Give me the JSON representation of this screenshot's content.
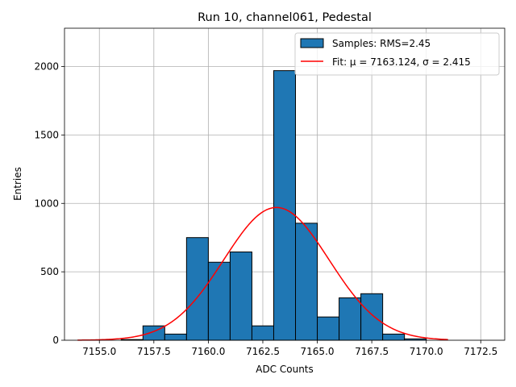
{
  "chart_data": {
    "type": "bar",
    "title": "Run 10, channel061, Pedestal",
    "xlabel": "ADC Counts",
    "ylabel": "Entries",
    "xlim": [
      7153.4,
      7173.6
    ],
    "ylim": [
      0,
      2280
    ],
    "x_ticks": [
      7155.0,
      7157.5,
      7160.0,
      7162.5,
      7165.0,
      7167.5,
      7170.0,
      7172.5
    ],
    "x_tick_labels": [
      "7155.0",
      "7157.5",
      "7160.0",
      "7162.5",
      "7165.0",
      "7167.5",
      "7170.0",
      "7172.5"
    ],
    "y_ticks": [
      0,
      500,
      1000,
      1500,
      2000
    ],
    "y_tick_labels": [
      "0",
      "500",
      "1000",
      "1500",
      "2000"
    ],
    "grid": true,
    "legend_position": "top-right",
    "histogram": {
      "name": "Samples: RMS=2.45",
      "color": "#1f77b4",
      "bin_edges": [
        7154,
        7155,
        7156,
        7157,
        7158,
        7159,
        7160,
        7161,
        7162,
        7163,
        7164,
        7165,
        7166,
        7167,
        7168,
        7169,
        7170,
        7171
      ],
      "counts": [
        0,
        0,
        5,
        105,
        45,
        750,
        570,
        645,
        105,
        1970,
        855,
        170,
        310,
        340,
        45,
        10,
        0
      ]
    },
    "fit": {
      "name": "Fit: μ = 7163.124, σ = 2.415",
      "color": "#ff0000",
      "mu": 7163.124,
      "sigma": 2.415,
      "amplitude": 970,
      "x_range": [
        7154,
        7171
      ]
    }
  }
}
